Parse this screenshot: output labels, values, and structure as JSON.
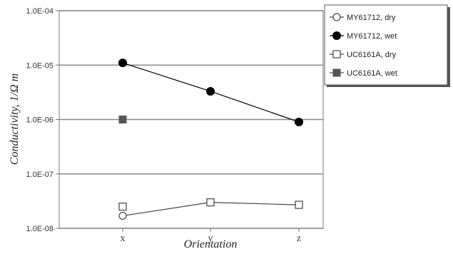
{
  "chart_data": {
    "type": "scatter",
    "title": "",
    "xlabel": "Orientation",
    "ylabel": "Conductivity, 1/Ω m",
    "yscale": "log",
    "ylim": [
      1e-08,
      0.0001
    ],
    "ytick_labels": [
      "1.0E-04",
      "1.0E-05",
      "1.0E-06",
      "1.0E-07",
      "1.0E-08"
    ],
    "ytick_values": [
      0.0001,
      1e-05,
      1e-06,
      1e-07,
      1e-08
    ],
    "categories": [
      "x",
      "y",
      "z"
    ],
    "grid": true,
    "legend_position": "right",
    "series": [
      {
        "name": "MY61712, dry",
        "marker": "circle-open",
        "connected": true,
        "color": "#444444",
        "points": [
          {
            "x": "x",
            "y": 1.7e-08
          },
          {
            "x": "y",
            "y": 3e-08
          },
          {
            "x": "z",
            "y": 2.7e-08
          }
        ]
      },
      {
        "name": "MY61712, wet",
        "marker": "circle-filled",
        "connected": true,
        "color": "#000000",
        "points": [
          {
            "x": "x",
            "y": 1.1e-05
          },
          {
            "x": "y",
            "y": 3.3e-06
          },
          {
            "x": "z",
            "y": 9e-07
          }
        ]
      },
      {
        "name": "UC6161A, dry",
        "marker": "square-open",
        "connected": false,
        "color": "#444444",
        "points": [
          {
            "x": "x",
            "y": 2.5e-08
          },
          {
            "x": "y",
            "y": 3e-08
          },
          {
            "x": "z",
            "y": 2.7e-08
          }
        ]
      },
      {
        "name": "UC6161A, wet",
        "marker": "square-filled",
        "connected": false,
        "color": "#555555",
        "points": [
          {
            "x": "x",
            "y": 1e-06
          }
        ]
      }
    ]
  }
}
